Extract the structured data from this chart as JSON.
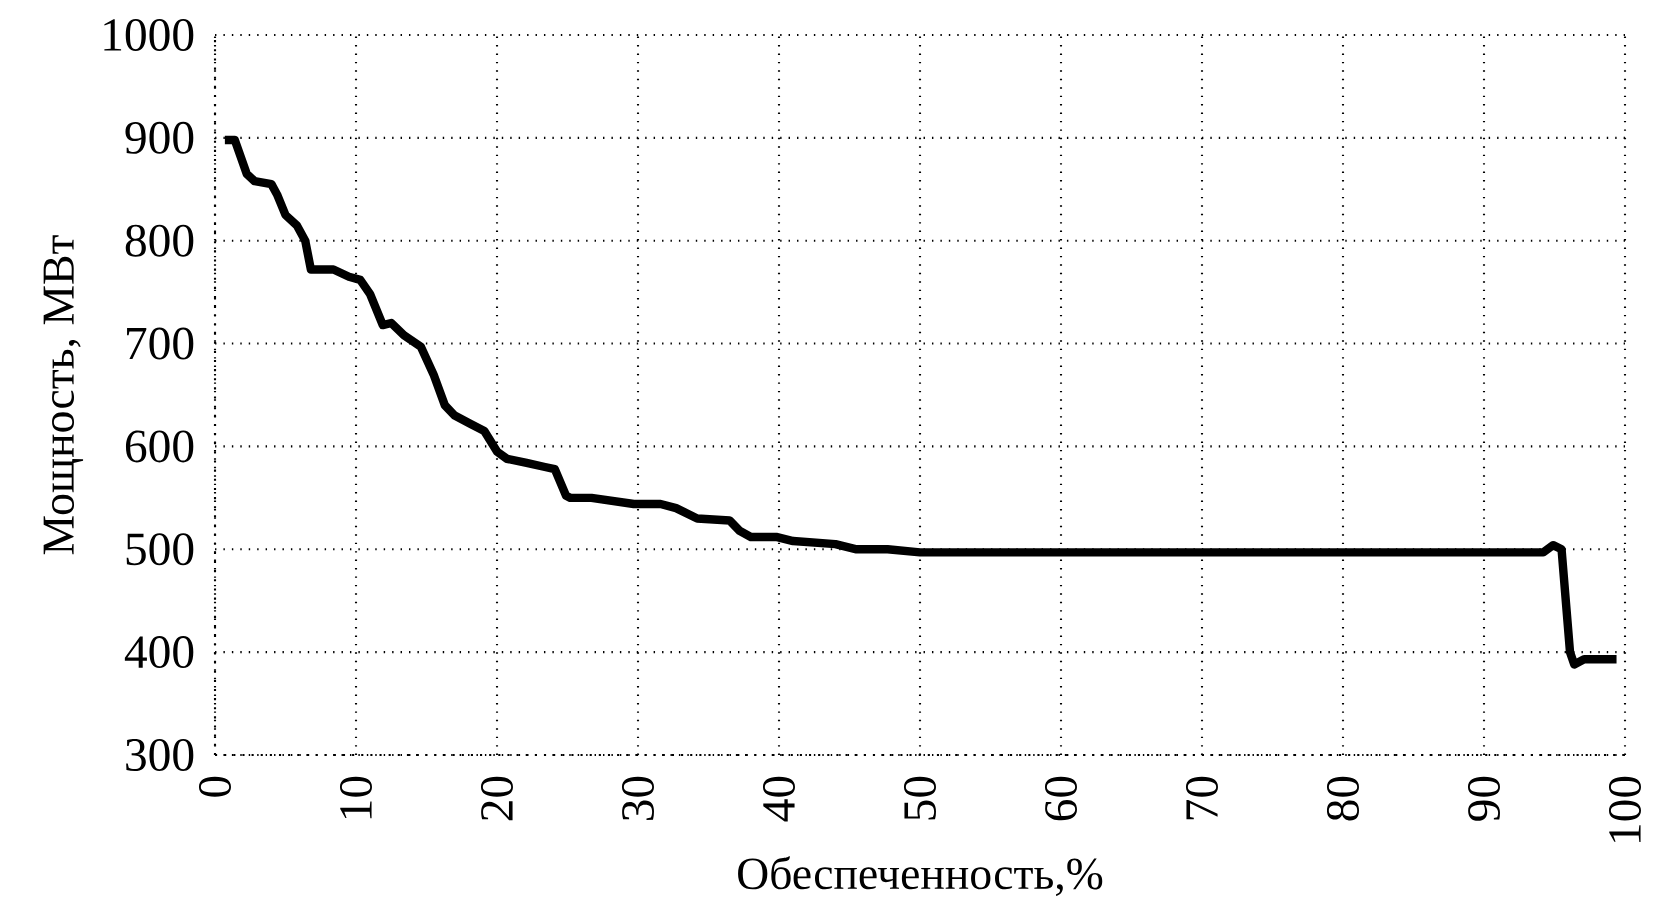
{
  "chart_data": {
    "type": "line",
    "xlabel": "Обеспеченность,%",
    "ylabel": "Мощность, МВт",
    "x": [
      0.7,
      1.4,
      2.25,
      2.8,
      4,
      4.4,
      5,
      5.8,
      6.4,
      6.8,
      7.3,
      8.4,
      9.5,
      10.3,
      11,
      11.9,
      12.5,
      13.4,
      14.6,
      15.5,
      16.3,
      17,
      18.1,
      19.1,
      20,
      20.7,
      22.1,
      23.4,
      24.1,
      24.9,
      25.2,
      26.7,
      29.7,
      31.6,
      32.7,
      34.2,
      36.5,
      37.2,
      38,
      39.8,
      41,
      44,
      45.5,
      47.7,
      50,
      70,
      94.2,
      94.9,
      95.5,
      96.1,
      96.4,
      97.1,
      99.4
    ],
    "series": [
      {
        "color": "#000000",
        "values": [
          898,
          898,
          865,
          858,
          855,
          845,
          825,
          815,
          800,
          772,
          772,
          772,
          765,
          762,
          748,
          718,
          720,
          708,
          697,
          670,
          640,
          630,
          622,
          615,
          595,
          588,
          584,
          580,
          578,
          552,
          550,
          550,
          544,
          544,
          540,
          530,
          528,
          518,
          512,
          512,
          508,
          505,
          500,
          500,
          497,
          497,
          497,
          504,
          500,
          400,
          388,
          393,
          393
        ]
      }
    ],
    "xlim": [
      0,
      100
    ],
    "ylim": [
      300,
      1000
    ],
    "xticks": [
      0,
      10,
      20,
      30,
      40,
      50,
      60,
      70,
      80,
      90,
      100
    ],
    "yticks": [
      300,
      400,
      500,
      600,
      700,
      800,
      900,
      1000
    ],
    "grid": true,
    "marker": "none",
    "line_style": "solid"
  }
}
